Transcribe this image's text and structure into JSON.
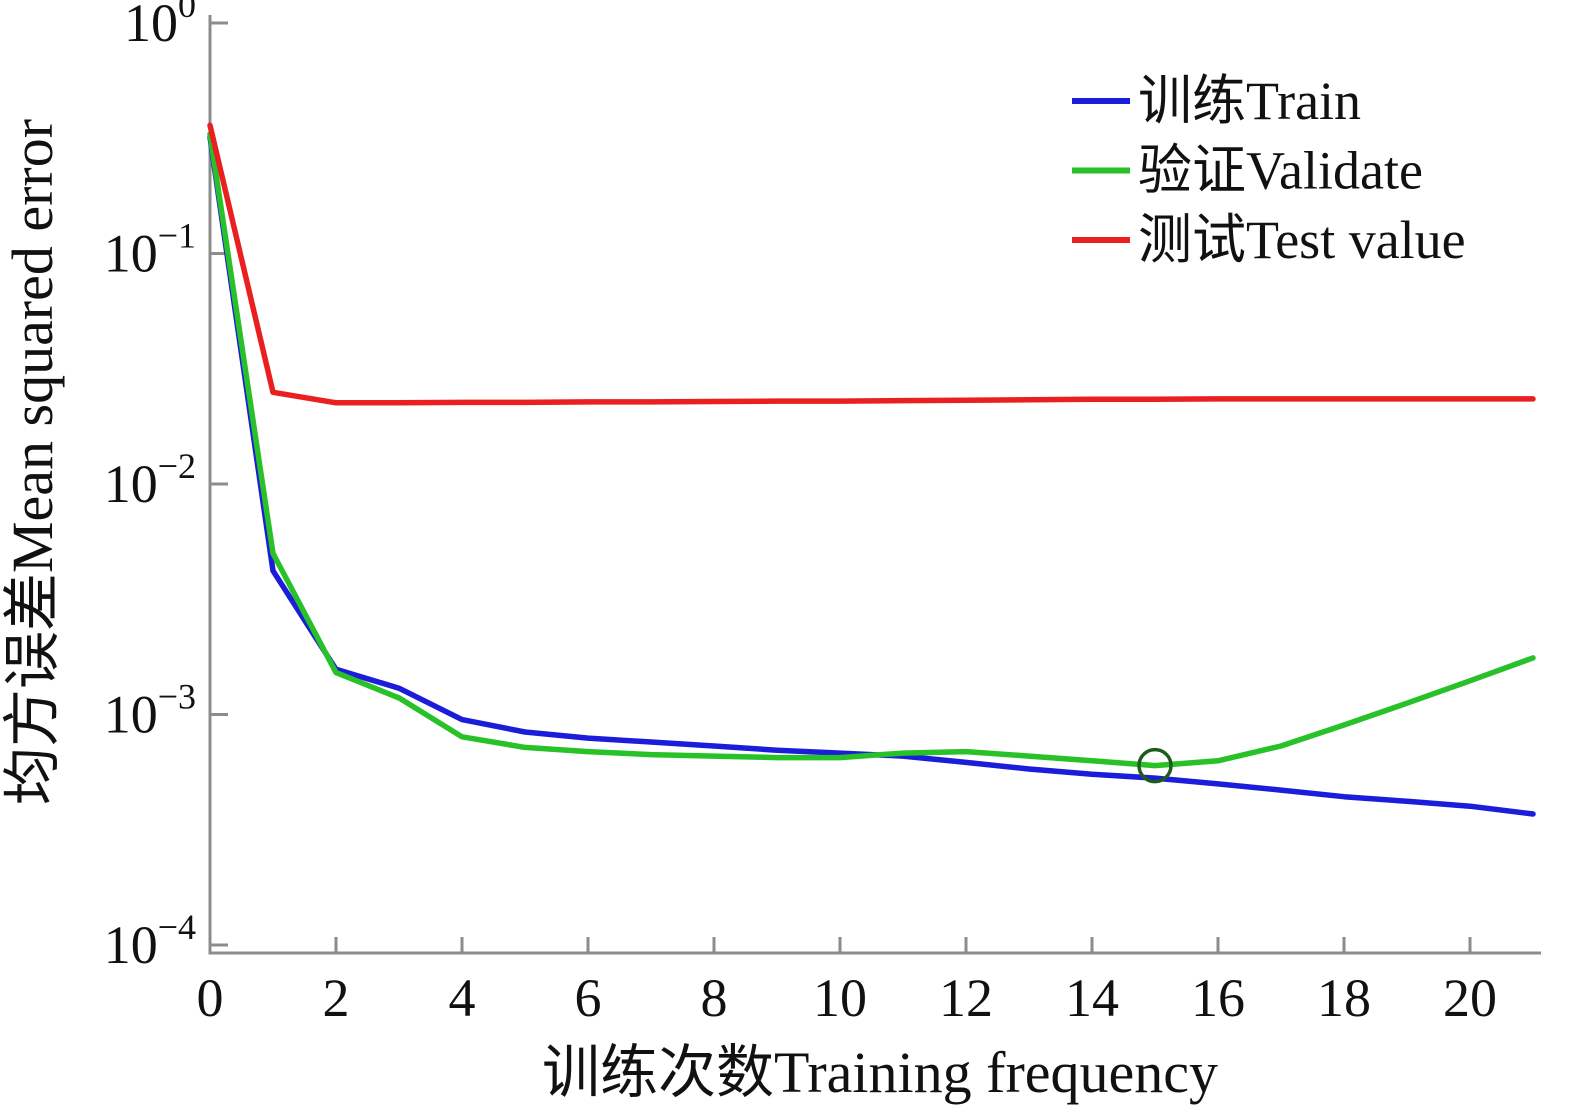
{
  "figure": {
    "background": "#ffffff",
    "axis_color": "#8c8c8c",
    "label_color": "#111111"
  },
  "chart_data": {
    "type": "line",
    "title": "",
    "xlabel": "训练次数Training frequency",
    "ylabel": "均方误差Mean squared error",
    "x_ticks": [
      0,
      2,
      4,
      6,
      8,
      10,
      12,
      14,
      16,
      18,
      20
    ],
    "xlim": [
      0,
      21
    ],
    "y_scale": "log10",
    "y_tick_exponents": [
      0,
      -1,
      -2,
      -3,
      -4
    ],
    "ylim": [
      0.0001,
      1
    ],
    "grid": false,
    "legend_position": "top-right",
    "x": [
      0,
      1,
      2,
      3,
      4,
      5,
      6,
      7,
      8,
      9,
      10,
      11,
      12,
      13,
      14,
      15,
      16,
      17,
      18,
      19,
      20,
      21
    ],
    "series": [
      {
        "name": "train",
        "label": "训练Train",
        "color": "#1c1cdb",
        "values": [
          0.32,
          0.0042,
          0.00157,
          0.0013,
          0.00095,
          0.00084,
          0.00079,
          0.00076,
          0.00073,
          0.0007,
          0.00068,
          0.00066,
          0.00062,
          0.00058,
          0.00055,
          0.00053,
          0.0005,
          0.00047,
          0.00044,
          0.00042,
          0.0004,
          0.00037
        ]
      },
      {
        "name": "validate",
        "label": "验证Validate",
        "color": "#28c228",
        "values": [
          0.33,
          0.005,
          0.00152,
          0.00118,
          0.0008,
          0.00072,
          0.00069,
          0.00067,
          0.00066,
          0.00065,
          0.00065,
          0.00068,
          0.00069,
          0.00066,
          0.00063,
          0.0006,
          0.00063,
          0.00073,
          0.0009,
          0.00112,
          0.0014,
          0.00176
        ]
      },
      {
        "name": "test",
        "label": "测试Test value",
        "color": "#ea1f1f",
        "values": [
          0.36,
          0.025,
          0.0225,
          0.0225,
          0.0226,
          0.0226,
          0.0227,
          0.0227,
          0.0228,
          0.0229,
          0.0229,
          0.023,
          0.0231,
          0.0232,
          0.0233,
          0.0233,
          0.0234,
          0.0234,
          0.0234,
          0.0234,
          0.0234,
          0.0234
        ]
      }
    ],
    "best_point": {
      "series": "validate",
      "x": 15,
      "value": 0.0006,
      "marker": "circle",
      "marker_color": "#1d5c1d"
    }
  }
}
